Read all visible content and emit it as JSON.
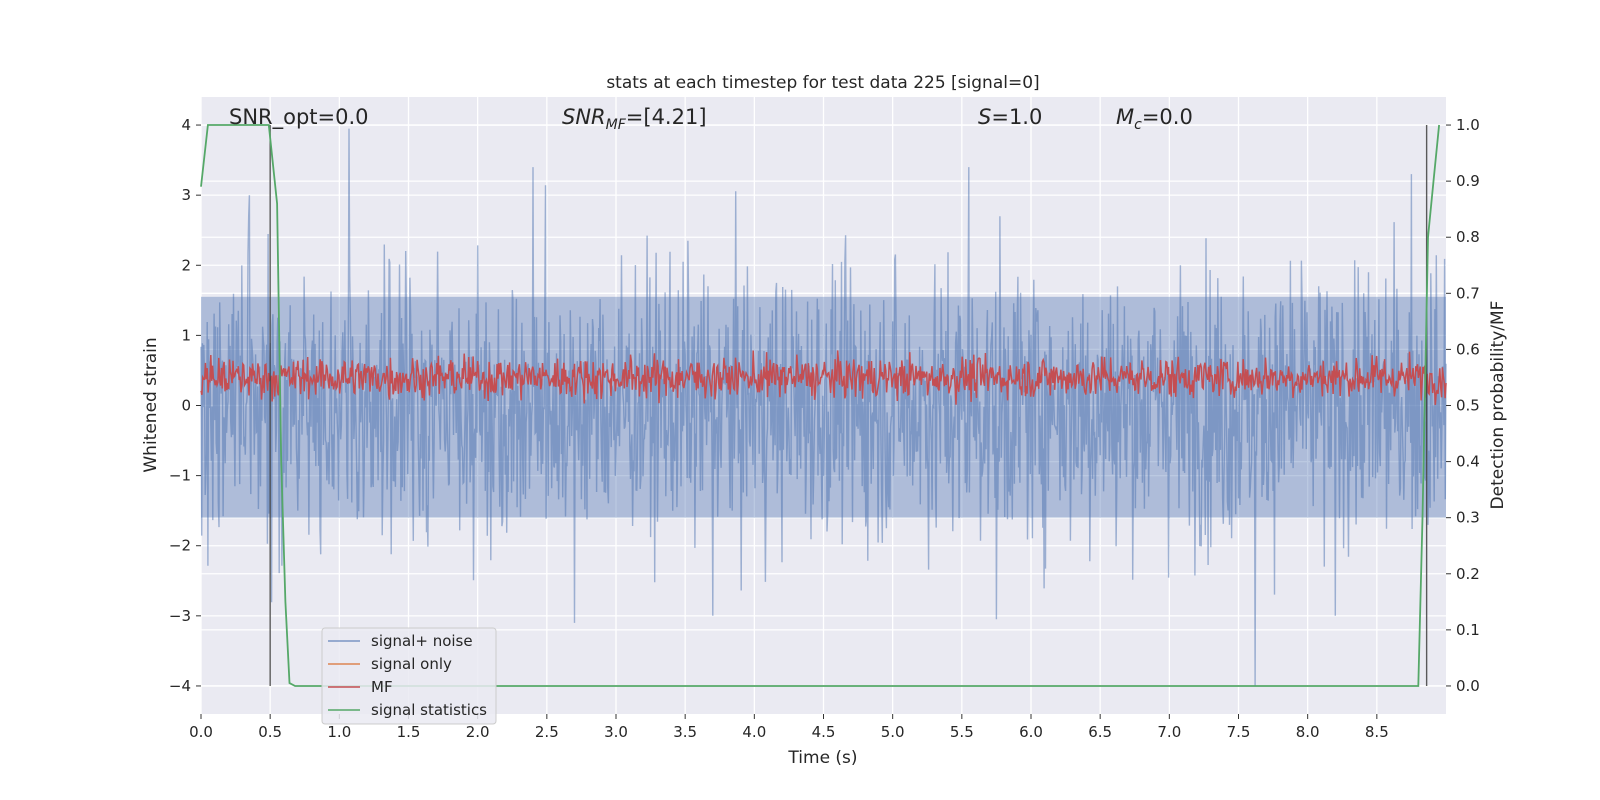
{
  "chart_data": {
    "type": "line",
    "title": "stats at each timestep for test data 225 [signal=0]",
    "xlabel": "Time (s)",
    "ylabel": "Whitened strain",
    "y2label": "Detection probability/MF",
    "xlim": [
      0.0,
      9.0
    ],
    "ylim": [
      -4.4,
      4.4
    ],
    "y2lim": [
      -0.05,
      1.05
    ],
    "x_ticks": [
      "0.0",
      "0.5",
      "1.0",
      "1.5",
      "2.0",
      "2.5",
      "3.0",
      "3.5",
      "4.0",
      "4.5",
      "5.0",
      "5.5",
      "6.0",
      "6.5",
      "7.0",
      "7.5",
      "8.0",
      "8.5"
    ],
    "y_ticks": [
      "4",
      "3",
      "2",
      "1",
      "0",
      "−1",
      "−2",
      "−3",
      "−4"
    ],
    "y2_ticks": [
      "1.0",
      "0.9",
      "0.8",
      "0.7",
      "0.6",
      "0.5",
      "0.4",
      "0.3",
      "0.2",
      "0.1",
      "0.0"
    ],
    "grid": true,
    "legend_position": "lower-left",
    "annotations": {
      "snr_opt": "SNR_opt=0.0",
      "snr_mf_main": "SNR",
      "snr_mf_sub": "MF",
      "snr_mf_rest": "=[4.21]",
      "s_main": "S",
      "s_rest": "=1.0",
      "mc_main": "M",
      "mc_sub": "c",
      "mc_rest": "=0.0"
    },
    "vertical_markers_s": [
      0.5,
      8.86
    ],
    "series": [
      {
        "name": "signal+ noise",
        "color": "#4c72b0",
        "opacity": 0.5,
        "description": "noise-dominated whitened strain, approx. uniform amplitude between -2.5 and 2.5 with peaks to +/-4",
        "envelope_peaks": [
          {
            "x": 0.35,
            "y": 3.0
          },
          {
            "x": 1.07,
            "y": 3.95
          },
          {
            "x": 2.4,
            "y": 3.4
          },
          {
            "x": 5.55,
            "y": 3.4
          },
          {
            "x": 8.75,
            "y": 3.3
          },
          {
            "x": 7.62,
            "y": -4.0
          },
          {
            "x": 2.7,
            "y": -3.1
          },
          {
            "x": 5.75,
            "y": -3.05
          },
          {
            "x": 3.7,
            "y": -3.0
          },
          {
            "x": 8.2,
            "y": -3.0
          }
        ]
      },
      {
        "name": "signal only",
        "color": "#dd8452",
        "values": "zero (no signal)"
      },
      {
        "name": "MF",
        "color": "#c44e52",
        "description": "matched-filter output on right axis, fluctuating between ~0.50 and ~0.62",
        "baseline": 0.55,
        "range": [
          0.5,
          0.625
        ]
      },
      {
        "name": "signal statistics",
        "color": "#55a868",
        "x": [
          0.0,
          0.05,
          0.1,
          0.49,
          0.55,
          0.58,
          0.61,
          0.64,
          0.68,
          8.8,
          8.83,
          8.87,
          8.91,
          8.95
        ],
        "y": [
          0.89,
          1.0,
          1.0,
          1.0,
          0.86,
          0.4,
          0.15,
          0.005,
          0.0,
          0.0,
          0.3,
          0.8,
          0.9,
          1.0
        ]
      }
    ]
  }
}
